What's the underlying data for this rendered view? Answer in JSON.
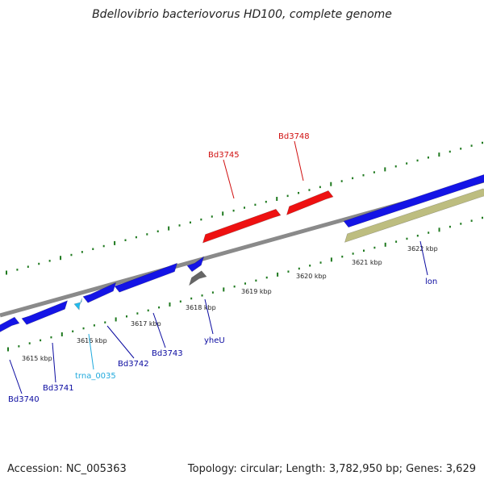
{
  "title": "Bdellovibrio bacteriovorus HD100, complete genome",
  "footer": {
    "accession": "Accession: NC_005363",
    "summary": "Topology: circular; Length: 3,782,950 bp; Genes: 3,629"
  },
  "colors": {
    "forward_gene": "#1414e6",
    "reverse_gene": "#ee1111",
    "trna": "#22bbee",
    "pseudogene": "#666666",
    "gc_feature": "#bdbd80",
    "backbone": "#8a8a8a",
    "tick": "#1f7a1f",
    "label_blue": "#0a0aa0",
    "label_red": "#d01010",
    "label_cyan": "#22aadd",
    "scale_text": "#222222"
  },
  "scale_labels": [
    "3615 kbp",
    "3616 kbp",
    "3617 kbp",
    "3618 kbp",
    "3619 kbp",
    "3620 kbp",
    "3621 kbp",
    "3622 kbp"
  ],
  "gene_labels": [
    {
      "name": "Bd3740",
      "color": "label_blue"
    },
    {
      "name": "Bd3741",
      "color": "label_blue"
    },
    {
      "name": "trna_0035",
      "color": "label_cyan"
    },
    {
      "name": "Bd3742",
      "color": "label_blue"
    },
    {
      "name": "Bd3743",
      "color": "label_blue"
    },
    {
      "name": "yheU",
      "color": "label_blue"
    },
    {
      "name": "lon",
      "color": "label_blue"
    },
    {
      "name": "Bd3745",
      "color": "label_red"
    },
    {
      "name": "Bd3748",
      "color": "label_red"
    }
  ]
}
